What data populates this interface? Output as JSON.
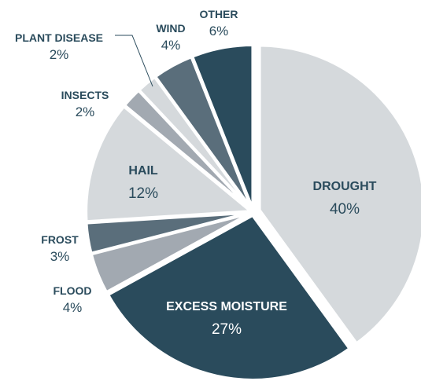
{
  "chart_data": {
    "type": "pie",
    "slices": [
      {
        "label": "DROUGHT",
        "value": 40,
        "value_label": "40%",
        "color": "#d5d9dc",
        "text_color": "#2a4b5c"
      },
      {
        "label": "EXCESS MOISTURE",
        "value": 27,
        "value_label": "27%",
        "color": "#2a4b5c",
        "text_color": "#ffffff"
      },
      {
        "label": "FLOOD",
        "value": 4,
        "value_label": "4%",
        "color": "#a2a9b1",
        "text_color": "#2a4b5c"
      },
      {
        "label": "FROST",
        "value": 3,
        "value_label": "3%",
        "color": "#5a6e7b",
        "text_color": "#2a4b5c"
      },
      {
        "label": "HAIL",
        "value": 12,
        "value_label": "12%",
        "color": "#d5d9dc",
        "text_color": "#2a4b5c"
      },
      {
        "label": "INSECTS",
        "value": 2,
        "value_label": "2%",
        "color": "#a2a9b1",
        "text_color": "#2a4b5c"
      },
      {
        "label": "PLANT DISEASE",
        "value": 2,
        "value_label": "2%",
        "color": "#d5d9dc",
        "text_color": "#2a4b5c"
      },
      {
        "label": "WIND",
        "value": 4,
        "value_label": "4%",
        "color": "#5a6e7b",
        "text_color": "#2a4b5c"
      },
      {
        "label": "OTHER",
        "value": 6,
        "value_label": "6%",
        "color": "#2a4b5c",
        "text_color": "#2a4b5c"
      }
    ],
    "legend": "none"
  }
}
